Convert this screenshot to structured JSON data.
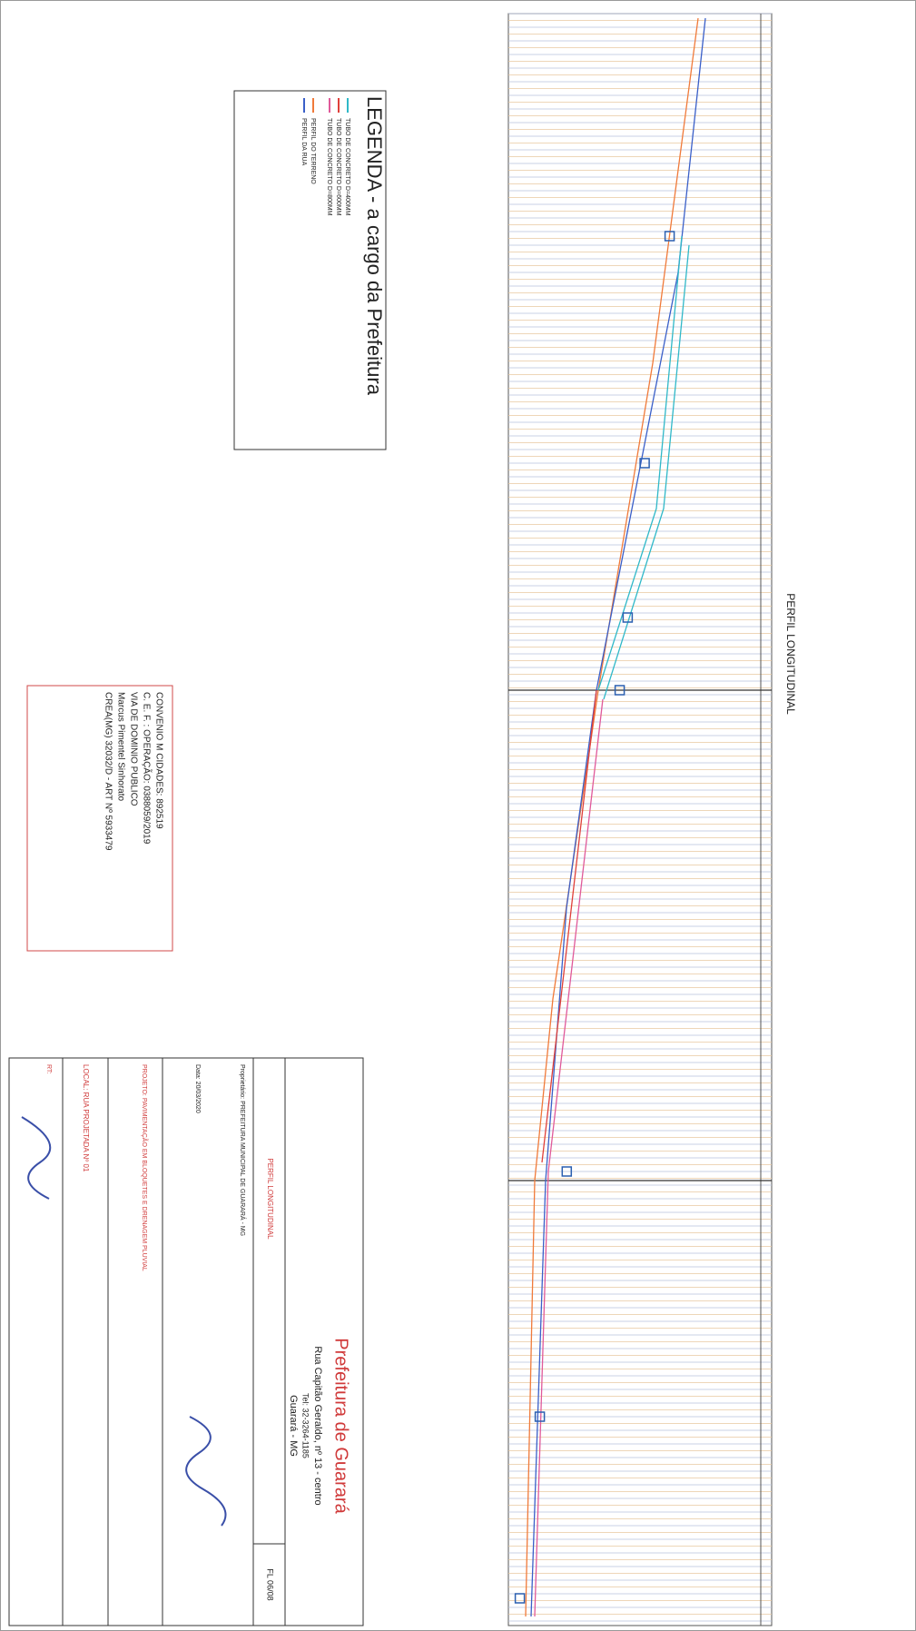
{
  "drawing_title": "PERFIL LONGITUDINAL",
  "legend": {
    "title": "LEGENDA - a cargo da Prefeitura",
    "items": [
      {
        "label": "TUBO DE CONCRETO D=400MM",
        "color": "#2fb8c8"
      },
      {
        "label": "TUBO DE CONCRETO D=600MM",
        "color": "#e0403a"
      },
      {
        "label": "TUBO DE CONCRETO D=800MM",
        "color": "#e05a9a"
      },
      {
        "label": "PERFIL DO TERRENO",
        "color": "#f07a3a"
      },
      {
        "label": "PERFIL DA RUA",
        "color": "#3a5fc8"
      }
    ]
  },
  "info_box": {
    "lines": [
      "CONVENIO M CIDADES: 892519",
      "C. E. F. : OPERAÇÃO: 0388059/2019",
      "VIA DE DOMINIO PUBLICO",
      "Marcus Pimentel Sinhorato",
      "CREA(MG) 32032/D - ART Nº 5933479"
    ]
  },
  "title_block": {
    "organization": "Prefeitura de Guarará",
    "address": "Rua Capitão Geraldo, nº 13 - centro",
    "phone": "Tel: 32-3264-1185",
    "city": "Guarará - MG",
    "sheet_title": "PERFIL LONGITUDINAL",
    "sheet_number": "FL 06/08",
    "owner": "Proprietário: PREFEITURA MUNICIPAL DE GUARARÁ - MG",
    "date": "Data: 20/03/2020",
    "project": "PROJETO: PAVIMENTAÇÃO EM BLOQUETES E DRENAGEM PLUVIAL",
    "location": "LOCAL: RUA PROJETADA Nº 01",
    "rt": "RT:"
  }
}
